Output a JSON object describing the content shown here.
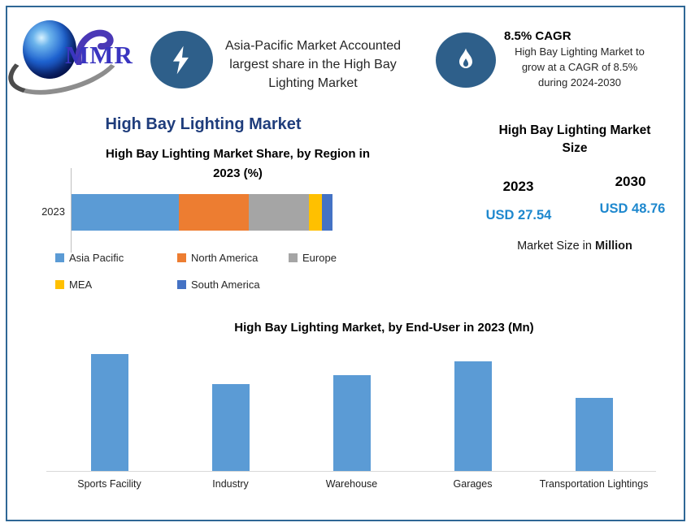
{
  "colors": {
    "border": "#2F6795",
    "accent_navy": "#1F3D7C",
    "value_blue": "#1E88CE",
    "icon_bg": "#2E5F8A",
    "bar_blue": "#5B9BD5"
  },
  "header": {
    "logo_text": "MMR",
    "highlight_icon": "lightning-bolt-icon",
    "highlight_lines": [
      "Asia-Pacific Market Accounted",
      "largest share in the High Bay",
      "Lighting Market"
    ],
    "cagr_icon": "flame-icon",
    "cagr_title": "8.5% CAGR",
    "cagr_lines": [
      "High Bay Lighting Market to",
      "grow at a CAGR of 8.5%",
      "during 2024-2030"
    ]
  },
  "region_section": {
    "title": "High Bay Lighting Market"
  },
  "market_size_panel": {
    "title_lines": [
      "High Bay Lighting Market",
      "Size"
    ],
    "columns": [
      {
        "year": "2023",
        "value": "USD 27.54"
      },
      {
        "year": "2030",
        "value": "USD 48.76"
      }
    ],
    "note_prefix": "Market Size in ",
    "note_bold": "Million"
  },
  "chart_data": [
    {
      "type": "bar",
      "orientation": "horizontal-stacked",
      "title": "High Bay Lighting Market Share, by Region in 2023 (%)",
      "title_lines": [
        "High Bay Lighting Market Share, by Region in",
        "2023 (%)"
      ],
      "categories": [
        "2023"
      ],
      "unit": "%",
      "xlim": [
        0,
        100
      ],
      "grid": false,
      "legend_position": "bottom",
      "series": [
        {
          "name": "Asia Pacific",
          "color": "#5B9BD5",
          "values": [
            41
          ]
        },
        {
          "name": "North America",
          "color": "#ED7D31",
          "values": [
            27
          ]
        },
        {
          "name": "Europe",
          "color": "#A5A5A5",
          "values": [
            23
          ]
        },
        {
          "name": "MEA",
          "color": "#FFC000",
          "values": [
            5
          ]
        },
        {
          "name": "South America",
          "color": "#4472C4",
          "values": [
            4
          ]
        }
      ]
    },
    {
      "type": "bar",
      "title": "High Bay Lighting Market, by End-User in 2023 (Mn)",
      "categories": [
        "Sports Facility",
        "Industry",
        "Warehouse",
        "Garages",
        "Transportation Lightings"
      ],
      "values": [
        6.7,
        5.0,
        5.5,
        6.3,
        4.2
      ],
      "values_estimated": true,
      "unit": "Mn",
      "bar_color": "#5B9BD5",
      "ylim": [
        0,
        7
      ],
      "grid": false
    }
  ]
}
